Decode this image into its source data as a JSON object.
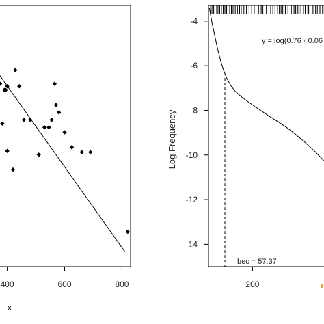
{
  "colors": {
    "ink": "#000000",
    "text": "#222222",
    "accent": "#e8a33a"
  },
  "chart_data": [
    {
      "type": "scatter",
      "xlabel": "x",
      "ylabel": "",
      "xlim": [
        370,
        830
      ],
      "ylim": [
        0,
        210
      ],
      "xticks": [
        400,
        600,
        800
      ],
      "points": [
        {
          "x": 375,
          "y": 147
        },
        {
          "x": 383,
          "y": 115
        },
        {
          "x": 390,
          "y": 142
        },
        {
          "x": 395,
          "y": 142
        },
        {
          "x": 400,
          "y": 93
        },
        {
          "x": 400,
          "y": 145
        },
        {
          "x": 420,
          "y": 78
        },
        {
          "x": 428,
          "y": 158
        },
        {
          "x": 442,
          "y": 145
        },
        {
          "x": 458,
          "y": 118
        },
        {
          "x": 480,
          "y": 118
        },
        {
          "x": 510,
          "y": 90
        },
        {
          "x": 530,
          "y": 112
        },
        {
          "x": 545,
          "y": 112
        },
        {
          "x": 555,
          "y": 118
        },
        {
          "x": 565,
          "y": 147
        },
        {
          "x": 570,
          "y": 130
        },
        {
          "x": 580,
          "y": 124
        },
        {
          "x": 600,
          "y": 108
        },
        {
          "x": 625,
          "y": 96
        },
        {
          "x": 660,
          "y": 92
        },
        {
          "x": 690,
          "y": 92
        },
        {
          "x": 820,
          "y": 28
        }
      ],
      "trend_line": {
        "x": [
          370,
          810
        ],
        "y": [
          155,
          12
        ]
      }
    },
    {
      "type": "line",
      "xlabel": "",
      "ylabel": "Log Frequency",
      "xlim": [
        98,
        375
      ],
      "ylim": [
        -15,
        -3.3
      ],
      "xticks": [
        200
      ],
      "yticks": [
        -4,
        -6,
        -8,
        -10,
        -12,
        -14
      ],
      "series": [
        {
          "x": [
            100,
            103,
            107,
            112,
            118,
            125,
            132,
            140,
            150,
            160,
            175,
            190,
            205,
            220,
            240,
            260,
            280,
            300,
            320,
            345,
            375
          ],
          "y": [
            -3.4,
            -3.75,
            -4.15,
            -4.6,
            -5.15,
            -5.7,
            -6.15,
            -6.55,
            -6.9,
            -7.15,
            -7.4,
            -7.62,
            -7.82,
            -8.02,
            -8.28,
            -8.52,
            -8.78,
            -9.08,
            -9.4,
            -9.85,
            -10.45
          ]
        }
      ],
      "vline": {
        "x": 136,
        "label": "bec = 57.37"
      },
      "equation": "y = log(0.76 · 0.06",
      "rug": [
        103,
        106,
        110,
        113,
        117,
        120,
        124,
        128,
        132,
        136,
        140,
        143,
        147,
        151,
        155,
        160,
        165,
        170,
        174,
        180,
        186,
        192,
        198,
        204,
        208,
        214,
        220,
        224,
        232,
        238,
        242,
        247,
        252,
        258,
        262,
        266,
        270,
        276,
        282,
        290,
        296,
        300,
        305,
        308,
        312,
        318,
        322,
        328,
        330,
        340,
        346,
        350,
        356,
        362,
        366,
        372
      ]
    }
  ]
}
